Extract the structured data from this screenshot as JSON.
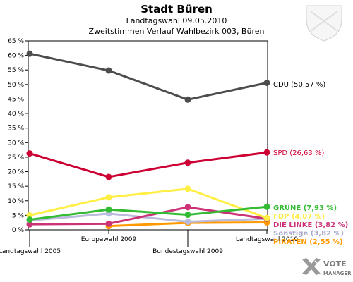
{
  "chart_data": {
    "type": "line",
    "title": "Stadt Büren",
    "subtitle1": "Landtagswahl 09.05.2010",
    "subtitle2": "Zweitstimmen Verlauf Wahlbezirk 003, Büren",
    "categories": [
      "Landtagswahl 2005",
      "Europawahl 2009",
      "Bundestagswahl 2009",
      "Landtagswahl 2010"
    ],
    "ylim": [
      0,
      65
    ],
    "yticks": [
      0,
      5,
      10,
      15,
      20,
      25,
      30,
      35,
      40,
      45,
      50,
      55,
      60,
      65
    ],
    "ytick_suffix": " %",
    "grid": false,
    "series": [
      {
        "name": "CDU",
        "label": "CDU (50,57 %)",
        "color": "#4d4d4d",
        "label_color": "#000000",
        "values": [
          60.6,
          54.8,
          44.8,
          50.57
        ]
      },
      {
        "name": "SPD",
        "label": "SPD (26,63 %)",
        "color": "#cc0033",
        "label_color": "#cc0033",
        "values": [
          26.3,
          18.2,
          23.1,
          26.63
        ]
      },
      {
        "name": "GRÜNE",
        "label": "GRÜNE (7,93 %)",
        "color": "#33bb33",
        "label_color": "#33bb33",
        "values": [
          3.5,
          7.0,
          5.2,
          7.93
        ]
      },
      {
        "name": "FDP",
        "label": "FDP (4,07 %)",
        "color": "#ffee44",
        "label_color": "#ffee44",
        "values": [
          5.0,
          11.2,
          14.1,
          4.07
        ]
      },
      {
        "name": "DIE LINKE",
        "label": "DIE LINKE (3,82 %)",
        "color": "#cc3377",
        "label_color": "#cc3377",
        "values": [
          1.9,
          2.1,
          7.8,
          3.82
        ]
      },
      {
        "name": "Sonstige",
        "label": "Sonstige (3,82 %)",
        "color": "#bbbbdd",
        "label_color": "#aaaacc",
        "values": [
          3.2,
          5.6,
          2.8,
          3.82
        ]
      },
      {
        "name": "PIRATEN",
        "label": "PIRATEN (2,55 %)",
        "color": "#ff9900",
        "label_color": "#ff9900",
        "values": [
          null,
          1.3,
          2.4,
          2.55
        ]
      }
    ]
  },
  "branding": {
    "logo_line1": "VOTE",
    "logo_line2": "MANAGER",
    "logo_icon": "vote-manager-x-icon",
    "crest_icon": "coat-of-arms-icon"
  }
}
